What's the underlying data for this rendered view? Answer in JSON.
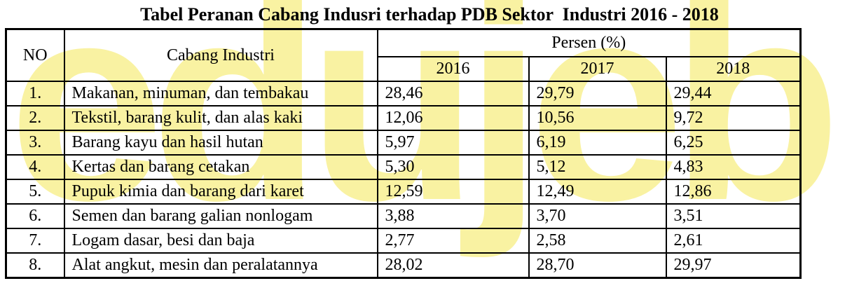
{
  "title": "Tabel Peranan Cabang Indusri terhadap PDB Sektor  Industri 2016 - 2018",
  "watermark": {
    "text": "edujeb",
    "color": "#f9f2a2"
  },
  "table": {
    "headers": {
      "no": "NO",
      "industry": "Cabang Industri",
      "percent_group": "Persen (%)",
      "years": [
        "2016",
        "2017",
        "2018"
      ]
    },
    "rows": [
      {
        "no": "1.",
        "name": "Makanan, minuman, dan tembakau",
        "y2016": "28,46",
        "y2017": "29,79",
        "y2018": "29,44"
      },
      {
        "no": "2.",
        "name": "Tekstil, barang kulit, dan alas kaki",
        "y2016": "12,06",
        "y2017": "10,56",
        "y2018": "9,72"
      },
      {
        "no": "3.",
        "name": "Barang kayu dan hasil hutan",
        "y2016": "5,97",
        "y2017": "6,19",
        "y2018": "6,25"
      },
      {
        "no": "4.",
        "name": "Kertas dan barang cetakan",
        "y2016": "5,30",
        "y2017": "5,12",
        "y2018": "4,83"
      },
      {
        "no": "5.",
        "name": "Pupuk kimia dan barang dari karet",
        "y2016": "12,59",
        "y2017": "12,49",
        "y2018": "12,86"
      },
      {
        "no": "6.",
        "name": "Semen dan barang galian nonlogam",
        "y2016": "3,88",
        "y2017": "3,70",
        "y2018": "3,51"
      },
      {
        "no": "7.",
        "name": "Logam dasar, besi dan baja",
        "y2016": "2,77",
        "y2017": "2,58",
        "y2018": "2,61"
      },
      {
        "no": "8.",
        "name": "Alat angkut, mesin dan peralatannya",
        "y2016": "28,02",
        "y2017": "28,70",
        "y2018": "29,97"
      }
    ]
  }
}
